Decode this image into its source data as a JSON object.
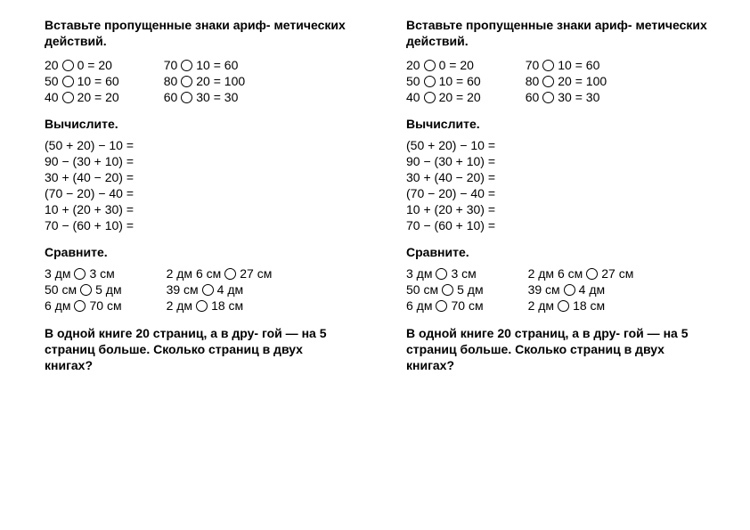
{
  "heading1": "Вставьте пропущенные знаки ариф- метических действий.",
  "eqA": [
    {
      "l": "20",
      "r": "0 = 20"
    },
    {
      "l": "50",
      "r": "10 = 60"
    },
    {
      "l": "40",
      "r": "20 = 20"
    }
  ],
  "eqB": [
    {
      "l": "70",
      "r": "10 = 60"
    },
    {
      "l": "80",
      "r": "20 = 100"
    },
    {
      "l": "60",
      "r": "30 = 30"
    }
  ],
  "heading2": "Вычислите.",
  "calc": [
    "(50 + 20) − 10 =",
    "90 − (30 + 10) =",
    "30 + (40 − 20) =",
    "(70 − 20) − 40 =",
    "10 + (20 + 30) =",
    "70 − (60 + 10) ="
  ],
  "heading3": "Сравните.",
  "cmpA": [
    {
      "l": "3 дм",
      "r": "3 см"
    },
    {
      "l": "50 см",
      "r": "5 дм"
    },
    {
      "l": "6 дм",
      "r": "70 см"
    }
  ],
  "cmpB": [
    {
      "l": "2 дм 6 см",
      "r": "27 см"
    },
    {
      "l": "39 см",
      "r": "4 дм"
    },
    {
      "l": "2 дм",
      "r": "18 см"
    }
  ],
  "problem": "В одной книге 20 страниц, а в дру- гой — на 5 страниц больше. Сколько страниц в двух книгах?"
}
